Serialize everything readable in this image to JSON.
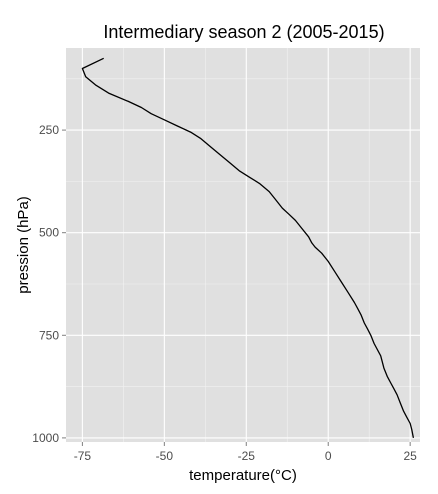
{
  "chart_data": {
    "type": "line",
    "title": "Intermediary season 2 (2005-2015)",
    "xlabel": "temperature(°C)",
    "ylabel": "pression (hPa)",
    "xlim": [
      -80,
      28
    ],
    "ylim": [
      1010,
      50
    ],
    "y_reversed": true,
    "grid": true,
    "background": "#e0e0e0",
    "line_color": "#000000",
    "x_ticks": [
      -75,
      -50,
      -25,
      0,
      25
    ],
    "y_ticks": [
      250,
      500,
      750,
      1000
    ],
    "series": [
      {
        "x": [
          -68.5,
          -75,
          -74,
          -71,
          -67,
          -61,
          -57,
          -54,
          -50,
          -46,
          -42,
          -39,
          -36,
          -33,
          -30,
          -27,
          -24,
          -21,
          -18,
          -16,
          -14,
          -12,
          -10,
          -8,
          -6,
          -5,
          -4,
          -2,
          0,
          2,
          4,
          6,
          8,
          9,
          10,
          11,
          12,
          13,
          14,
          16,
          17,
          18,
          19,
          20,
          21,
          22,
          23,
          24,
          25,
          25.5,
          26
        ],
        "y": [
          75,
          100,
          120,
          140,
          160,
          180,
          195,
          210,
          225,
          240,
          255,
          270,
          290,
          310,
          330,
          350,
          365,
          380,
          400,
          420,
          440,
          455,
          470,
          490,
          510,
          525,
          535,
          550,
          570,
          595,
          620,
          645,
          670,
          685,
          700,
          720,
          735,
          750,
          770,
          800,
          830,
          850,
          865,
          880,
          895,
          915,
          935,
          950,
          965,
          980,
          1000
        ]
      }
    ]
  }
}
